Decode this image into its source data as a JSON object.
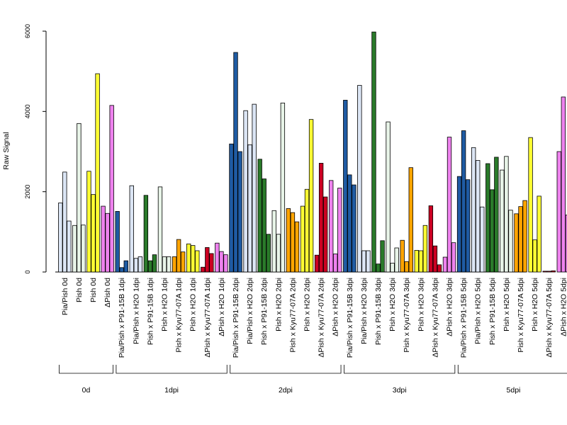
{
  "chart_data": {
    "type": "bar",
    "ylabel": "Raw Signal",
    "xlabel": "",
    "ylim": [
      0,
      6000
    ],
    "yticks": [
      0,
      2000,
      4000,
      6000
    ],
    "groups": [
      "0d",
      "1dpi",
      "2dpi",
      "3dpi",
      "5dpi"
    ],
    "categories": [
      {
        "label": "Pia/Pish 0d",
        "group": "0d",
        "fill": "#dce6f5",
        "values": [
          1720,
          2490,
          1270
        ]
      },
      {
        "label": "Pish 0d",
        "group": "0d",
        "fill": "#e8f4e8",
        "values": [
          1160,
          3700,
          1170
        ]
      },
      {
        "label": "Pish 0d",
        "group": "0d",
        "fill": "#ffff33",
        "values": [
          2510,
          1930,
          4940
        ]
      },
      {
        "label": "ΔPish 0d",
        "group": "0d",
        "fill": "#ee82ee",
        "values": [
          1640,
          1460,
          4150
        ]
      },
      {
        "label": "Pia/Pish x P91-15B 1dpi",
        "group": "1dpi",
        "fill": "#1f5ba3",
        "values": [
          1510,
          110,
          280
        ]
      },
      {
        "label": "Pia/Pish x H2O 1dpi",
        "group": "1dpi",
        "fill": "#dce6f5",
        "values": [
          2150,
          340,
          380
        ]
      },
      {
        "label": "Pish x P91-15B 1dpi",
        "group": "1dpi",
        "fill": "#2a7a2a",
        "values": [
          1910,
          280,
          430
        ]
      },
      {
        "label": "Pish x H2O 1dpi",
        "group": "1dpi",
        "fill": "#e8f4e8",
        "values": [
          2120,
          380,
          380
        ]
      },
      {
        "label": "Pish x Kyu77-07A 1dpi",
        "group": "1dpi",
        "fill": "#ffa500",
        "values": [
          380,
          810,
          500
        ]
      },
      {
        "label": "Pish x H2O 1dpi",
        "group": "1dpi",
        "fill": "#ffff33",
        "values": [
          700,
          660,
          530
        ]
      },
      {
        "label": "ΔPish x Kyu77-07A 1dpi",
        "group": "1dpi",
        "fill": "#cc0022",
        "values": [
          120,
          610,
          460
        ]
      },
      {
        "label": "ΔPish x H2O 1dpi",
        "group": "1dpi",
        "fill": "#ee82ee",
        "values": [
          720,
          510,
          430
        ]
      },
      {
        "label": "Pia/Pish x P91-15B 2dpi",
        "group": "2dpi",
        "fill": "#1f5ba3",
        "values": [
          3190,
          5470,
          3000
        ]
      },
      {
        "label": "Pia/Pish x H2O 2dpi",
        "group": "2dpi",
        "fill": "#dce6f5",
        "values": [
          4020,
          3170,
          4180
        ]
      },
      {
        "label": "Pish x P91-15B 2dpi",
        "group": "2dpi",
        "fill": "#2a7a2a",
        "values": [
          2810,
          2320,
          940
        ]
      },
      {
        "label": "Pish x H2O 2dpi",
        "group": "2dpi",
        "fill": "#e8f4e8",
        "values": [
          1530,
          940,
          4210
        ]
      },
      {
        "label": "Pish x Kyu77-07A 2dpi",
        "group": "2dpi",
        "fill": "#ffa500",
        "values": [
          1580,
          1480,
          1250
        ]
      },
      {
        "label": "Pish x H2O 2dpi",
        "group": "2dpi",
        "fill": "#ffff33",
        "values": [
          1640,
          2060,
          3800
        ]
      },
      {
        "label": "ΔPish x Kyu77-07A 2dpi",
        "group": "2dpi",
        "fill": "#cc0022",
        "values": [
          420,
          2710,
          1870
        ]
      },
      {
        "label": "ΔPish x H2O 2dpi",
        "group": "2dpi",
        "fill": "#ee82ee",
        "values": [
          2280,
          450,
          2090
        ]
      },
      {
        "label": "Pia/Pish x P91-15B 3dpi",
        "group": "3dpi",
        "fill": "#1f5ba3",
        "values": [
          4280,
          2420,
          2170
        ]
      },
      {
        "label": "Pia/Pish x H2O 3dpi",
        "group": "3dpi",
        "fill": "#dce6f5",
        "values": [
          4650,
          530,
          530
        ]
      },
      {
        "label": "Pish x P91-15B 3dpi",
        "group": "3dpi",
        "fill": "#2a7a2a",
        "values": [
          5980,
          200,
          780
        ]
      },
      {
        "label": "Pish x H2O 3dpi",
        "group": "3dpi",
        "fill": "#e8f4e8",
        "values": [
          3740,
          220,
          600
        ]
      },
      {
        "label": "Pish x Kyu77-07A 3dpi",
        "group": "3dpi",
        "fill": "#ffa500",
        "values": [
          790,
          260,
          2600
        ]
      },
      {
        "label": "Pish x H2O 3dpi",
        "group": "3dpi",
        "fill": "#ffff33",
        "values": [
          540,
          530,
          1160
        ]
      },
      {
        "label": "ΔPish x Kyu77-07A 3dpi",
        "group": "3dpi",
        "fill": "#cc0022",
        "values": [
          1650,
          650,
          180
        ]
      },
      {
        "label": "ΔPish x H2O 3dpi",
        "group": "3dpi",
        "fill": "#ee82ee",
        "values": [
          370,
          3360,
          730
        ]
      },
      {
        "label": "Pia/Pish x P91-15B 5dpi",
        "group": "5dpi",
        "fill": "#1f5ba3",
        "values": [
          2380,
          3520,
          2300
        ]
      },
      {
        "label": "Pia/Pish x H2O 5dpi",
        "group": "5dpi",
        "fill": "#dce6f5",
        "values": [
          3100,
          2780,
          1620
        ]
      },
      {
        "label": "Pish x P91-15B 5dpi",
        "group": "5dpi",
        "fill": "#2a7a2a",
        "values": [
          2700,
          2050,
          2860
        ]
      },
      {
        "label": "Pish x H2O 5dpi",
        "group": "5dpi",
        "fill": "#e8f4e8",
        "values": [
          2540,
          2880,
          1540
        ]
      },
      {
        "label": "Pish x Kyu77-07A 5dpi",
        "group": "5dpi",
        "fill": "#ffa500",
        "values": [
          1450,
          1630,
          1780
        ]
      },
      {
        "label": "Pish x H2O 5dpi",
        "group": "5dpi",
        "fill": "#ffff33",
        "values": [
          3350,
          800,
          1890
        ]
      },
      {
        "label": "ΔPish x Kyu77-07A 5dpi",
        "group": "5dpi",
        "fill": "#cc0022",
        "values": [
          20,
          20,
          30
        ]
      },
      {
        "label": "ΔPish x H2O 5dpi",
        "group": "5dpi",
        "fill": "#ee82ee",
        "values": [
          3000,
          4360,
          1420
        ]
      }
    ]
  }
}
